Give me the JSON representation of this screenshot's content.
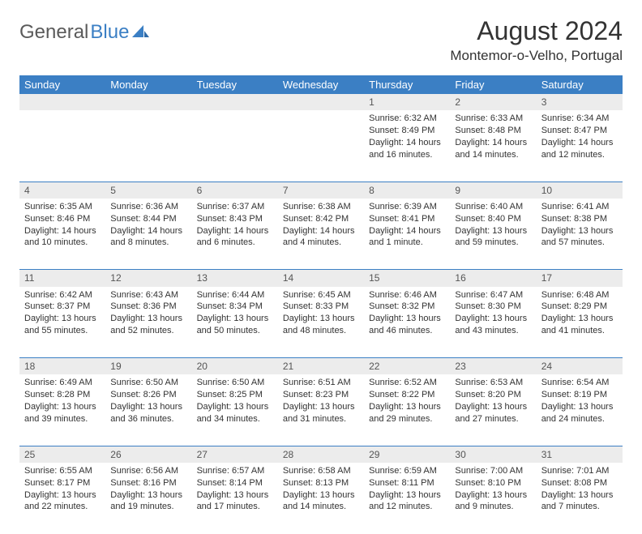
{
  "brand": {
    "part1": "General",
    "part2": "Blue"
  },
  "title": "August 2024",
  "location": "Montemor-o-Velho, Portugal",
  "colors": {
    "header_bg": "#3b7fc4",
    "header_text": "#ffffff",
    "daynum_bg": "#ececec",
    "text": "#333333",
    "rule": "#3b7fc4",
    "background": "#ffffff"
  },
  "typography": {
    "title_fontsize_pt": 24,
    "location_fontsize_pt": 13,
    "weekday_fontsize_pt": 10,
    "body_fontsize_pt": 8
  },
  "layout": {
    "columns": 7,
    "rows": 5,
    "start_weekday_index": 4
  },
  "weekdays": [
    "Sunday",
    "Monday",
    "Tuesday",
    "Wednesday",
    "Thursday",
    "Friday",
    "Saturday"
  ],
  "days": [
    {
      "n": "1",
      "sunrise": "6:32 AM",
      "sunset": "8:49 PM",
      "daylight": "14 hours and 16 minutes."
    },
    {
      "n": "2",
      "sunrise": "6:33 AM",
      "sunset": "8:48 PM",
      "daylight": "14 hours and 14 minutes."
    },
    {
      "n": "3",
      "sunrise": "6:34 AM",
      "sunset": "8:47 PM",
      "daylight": "14 hours and 12 minutes."
    },
    {
      "n": "4",
      "sunrise": "6:35 AM",
      "sunset": "8:46 PM",
      "daylight": "14 hours and 10 minutes."
    },
    {
      "n": "5",
      "sunrise": "6:36 AM",
      "sunset": "8:44 PM",
      "daylight": "14 hours and 8 minutes."
    },
    {
      "n": "6",
      "sunrise": "6:37 AM",
      "sunset": "8:43 PM",
      "daylight": "14 hours and 6 minutes."
    },
    {
      "n": "7",
      "sunrise": "6:38 AM",
      "sunset": "8:42 PM",
      "daylight": "14 hours and 4 minutes."
    },
    {
      "n": "8",
      "sunrise": "6:39 AM",
      "sunset": "8:41 PM",
      "daylight": "14 hours and 1 minute."
    },
    {
      "n": "9",
      "sunrise": "6:40 AM",
      "sunset": "8:40 PM",
      "daylight": "13 hours and 59 minutes."
    },
    {
      "n": "10",
      "sunrise": "6:41 AM",
      "sunset": "8:38 PM",
      "daylight": "13 hours and 57 minutes."
    },
    {
      "n": "11",
      "sunrise": "6:42 AM",
      "sunset": "8:37 PM",
      "daylight": "13 hours and 55 minutes."
    },
    {
      "n": "12",
      "sunrise": "6:43 AM",
      "sunset": "8:36 PM",
      "daylight": "13 hours and 52 minutes."
    },
    {
      "n": "13",
      "sunrise": "6:44 AM",
      "sunset": "8:34 PM",
      "daylight": "13 hours and 50 minutes."
    },
    {
      "n": "14",
      "sunrise": "6:45 AM",
      "sunset": "8:33 PM",
      "daylight": "13 hours and 48 minutes."
    },
    {
      "n": "15",
      "sunrise": "6:46 AM",
      "sunset": "8:32 PM",
      "daylight": "13 hours and 46 minutes."
    },
    {
      "n": "16",
      "sunrise": "6:47 AM",
      "sunset": "8:30 PM",
      "daylight": "13 hours and 43 minutes."
    },
    {
      "n": "17",
      "sunrise": "6:48 AM",
      "sunset": "8:29 PM",
      "daylight": "13 hours and 41 minutes."
    },
    {
      "n": "18",
      "sunrise": "6:49 AM",
      "sunset": "8:28 PM",
      "daylight": "13 hours and 39 minutes."
    },
    {
      "n": "19",
      "sunrise": "6:50 AM",
      "sunset": "8:26 PM",
      "daylight": "13 hours and 36 minutes."
    },
    {
      "n": "20",
      "sunrise": "6:50 AM",
      "sunset": "8:25 PM",
      "daylight": "13 hours and 34 minutes."
    },
    {
      "n": "21",
      "sunrise": "6:51 AM",
      "sunset": "8:23 PM",
      "daylight": "13 hours and 31 minutes."
    },
    {
      "n": "22",
      "sunrise": "6:52 AM",
      "sunset": "8:22 PM",
      "daylight": "13 hours and 29 minutes."
    },
    {
      "n": "23",
      "sunrise": "6:53 AM",
      "sunset": "8:20 PM",
      "daylight": "13 hours and 27 minutes."
    },
    {
      "n": "24",
      "sunrise": "6:54 AM",
      "sunset": "8:19 PM",
      "daylight": "13 hours and 24 minutes."
    },
    {
      "n": "25",
      "sunrise": "6:55 AM",
      "sunset": "8:17 PM",
      "daylight": "13 hours and 22 minutes."
    },
    {
      "n": "26",
      "sunrise": "6:56 AM",
      "sunset": "8:16 PM",
      "daylight": "13 hours and 19 minutes."
    },
    {
      "n": "27",
      "sunrise": "6:57 AM",
      "sunset": "8:14 PM",
      "daylight": "13 hours and 17 minutes."
    },
    {
      "n": "28",
      "sunrise": "6:58 AM",
      "sunset": "8:13 PM",
      "daylight": "13 hours and 14 minutes."
    },
    {
      "n": "29",
      "sunrise": "6:59 AM",
      "sunset": "8:11 PM",
      "daylight": "13 hours and 12 minutes."
    },
    {
      "n": "30",
      "sunrise": "7:00 AM",
      "sunset": "8:10 PM",
      "daylight": "13 hours and 9 minutes."
    },
    {
      "n": "31",
      "sunrise": "7:01 AM",
      "sunset": "8:08 PM",
      "daylight": "13 hours and 7 minutes."
    }
  ],
  "labels": {
    "sunrise": "Sunrise:",
    "sunset": "Sunset:",
    "daylight": "Daylight:"
  }
}
